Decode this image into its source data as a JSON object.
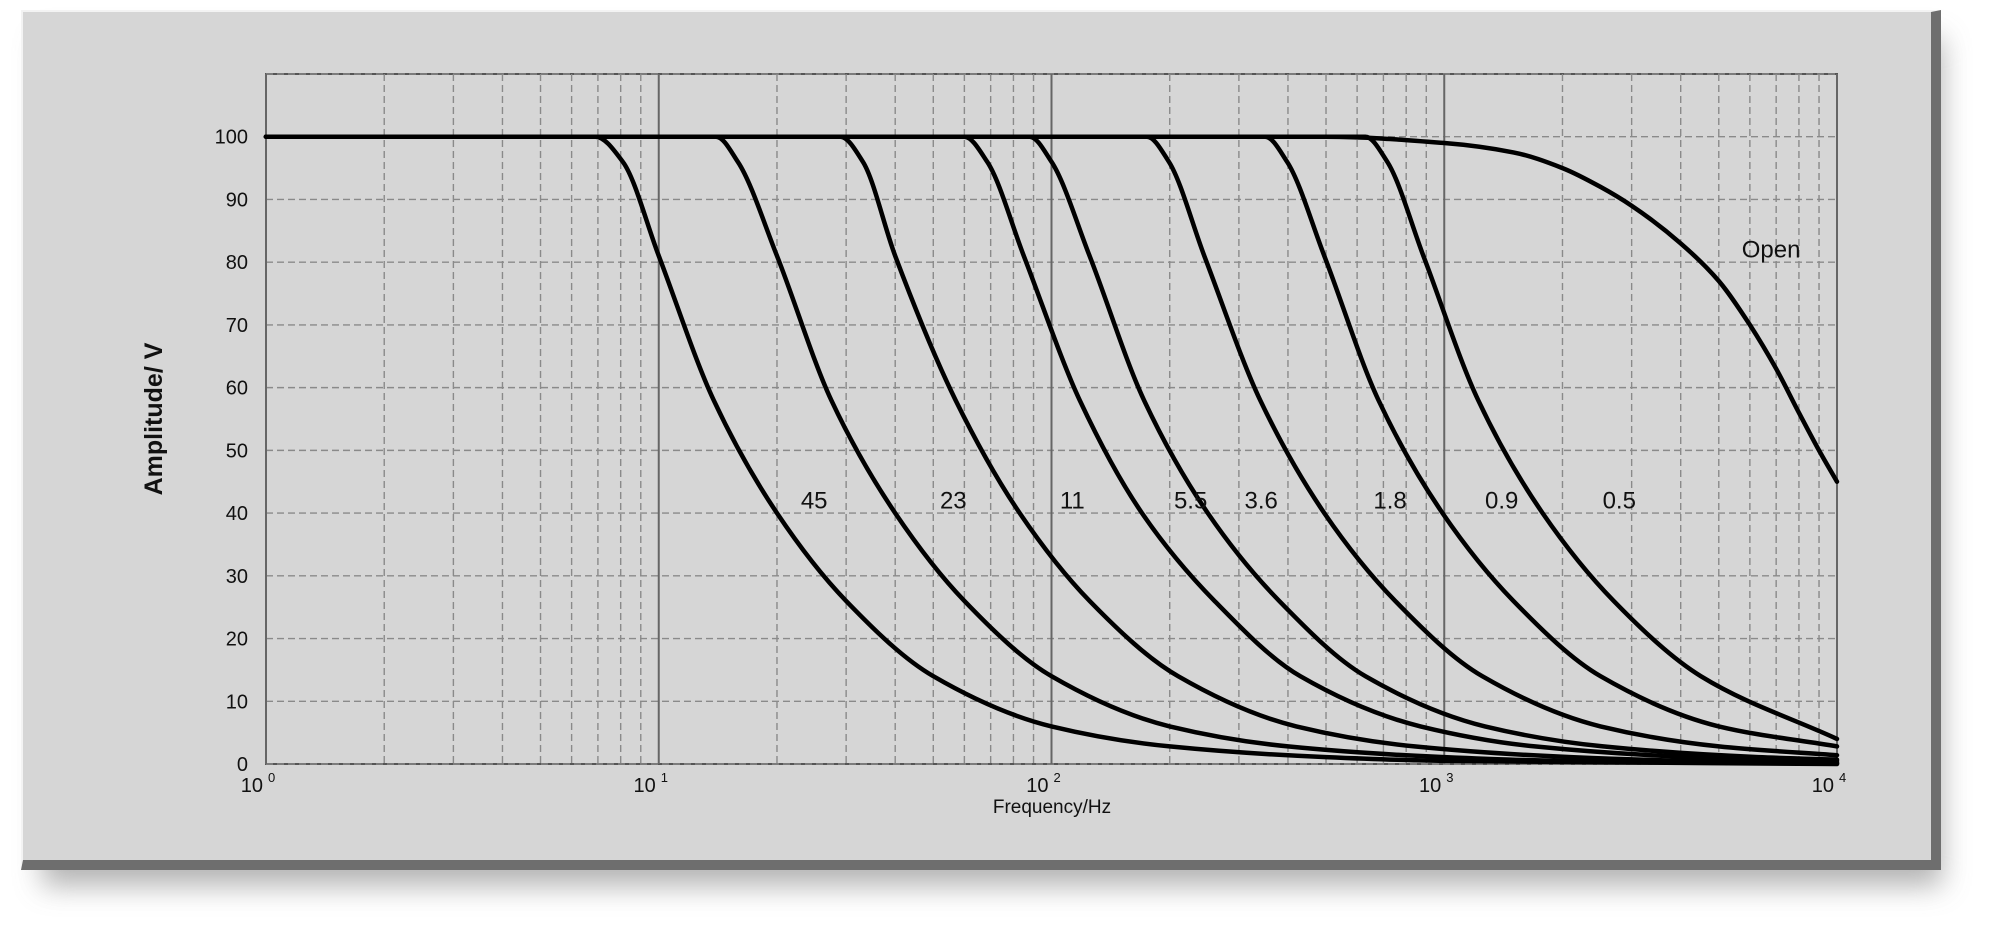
{
  "chart_data": {
    "type": "line",
    "xscale": "log",
    "xlim": [
      1,
      10000
    ],
    "ylim": [
      0,
      110
    ],
    "xlabel": "Frequency/Hz",
    "ylabel": "Amplitude/ V",
    "grid": true,
    "yticks": [
      0,
      10,
      20,
      30,
      40,
      50,
      60,
      70,
      80,
      90,
      100
    ],
    "xticks": [
      {
        "base": "10",
        "exp": "0",
        "value": 1
      },
      {
        "base": "10",
        "exp": "1",
        "value": 10
      },
      {
        "base": "10",
        "exp": "2",
        "value": 100
      },
      {
        "base": "10",
        "exp": "3",
        "value": 1000
      },
      {
        "base": "10",
        "exp": "4",
        "value": 10000
      }
    ],
    "series": [
      {
        "name": "45",
        "values": [
          [
            1,
            100
          ],
          [
            6.9,
            100
          ],
          [
            8.1,
            96
          ],
          [
            10,
            81
          ],
          [
            13.8,
            58
          ],
          [
            20,
            40
          ],
          [
            30,
            26
          ],
          [
            50,
            14
          ],
          [
            100,
            6
          ],
          [
            200,
            2.8
          ],
          [
            500,
            1.1
          ],
          [
            1000,
            0.5
          ],
          [
            10000,
            0
          ]
        ]
      },
      {
        "name": "23",
        "values": [
          [
            1,
            100
          ],
          [
            14,
            100
          ],
          [
            15.9,
            96
          ],
          [
            20,
            81
          ],
          [
            27.5,
            58
          ],
          [
            40,
            40
          ],
          [
            60,
            26
          ],
          [
            100,
            14
          ],
          [
            200,
            6
          ],
          [
            400,
            2.8
          ],
          [
            1000,
            1.1
          ],
          [
            2000,
            0.5
          ],
          [
            10000,
            0.1
          ]
        ]
      },
      {
        "name": "11",
        "values": [
          [
            1,
            100
          ],
          [
            29,
            100
          ],
          [
            33.1,
            96
          ],
          [
            40,
            81
          ],
          [
            57,
            58
          ],
          [
            83,
            40
          ],
          [
            125,
            26
          ],
          [
            210,
            14
          ],
          [
            420,
            6
          ],
          [
            840,
            2.8
          ],
          [
            2100,
            1.1
          ],
          [
            4200,
            0.5
          ],
          [
            10000,
            0.2
          ]
        ]
      },
      {
        "name": "5.5",
        "values": [
          [
            1,
            100
          ],
          [
            60,
            100
          ],
          [
            68.6,
            96
          ],
          [
            85,
            81
          ],
          [
            118,
            58
          ],
          [
            170,
            40
          ],
          [
            260,
            26
          ],
          [
            430,
            14
          ],
          [
            870,
            6
          ],
          [
            1700,
            2.8
          ],
          [
            4300,
            1.1
          ],
          [
            10000,
            0.5
          ]
        ]
      },
      {
        "name": "3.6",
        "values": [
          [
            1,
            100
          ],
          [
            88,
            100
          ],
          [
            100,
            96
          ],
          [
            125,
            81
          ],
          [
            172,
            58
          ],
          [
            250,
            40
          ],
          [
            380,
            26
          ],
          [
            630,
            14
          ],
          [
            1270,
            6
          ],
          [
            2540,
            2.8
          ],
          [
            6300,
            1.1
          ],
          [
            10000,
            0.7
          ]
        ]
      },
      {
        "name": "1.8",
        "values": [
          [
            1,
            100
          ],
          [
            175,
            100
          ],
          [
            199,
            96
          ],
          [
            245,
            81
          ],
          [
            340,
            58
          ],
          [
            495,
            40
          ],
          [
            750,
            26
          ],
          [
            1250,
            14
          ],
          [
            2500,
            6
          ],
          [
            5000,
            2.8
          ],
          [
            10000,
            1.4
          ]
        ]
      },
      {
        "name": "0.9",
        "values": [
          [
            1,
            100
          ],
          [
            350,
            100
          ],
          [
            398,
            96
          ],
          [
            495,
            81
          ],
          [
            680,
            58
          ],
          [
            990,
            40
          ],
          [
            1500,
            26
          ],
          [
            2500,
            14
          ],
          [
            5000,
            6
          ],
          [
            10000,
            2.8
          ]
        ]
      },
      {
        "name": "0.5",
        "values": [
          [
            1,
            100
          ],
          [
            630,
            100
          ],
          [
            716,
            96
          ],
          [
            885,
            81
          ],
          [
            1220,
            58
          ],
          [
            1780,
            40
          ],
          [
            2700,
            26
          ],
          [
            4500,
            14
          ],
          [
            10000,
            4
          ]
        ]
      },
      {
        "name": "Open",
        "values": [
          [
            1,
            100
          ],
          [
            500,
            100
          ],
          [
            1000,
            99
          ],
          [
            1500,
            97.5
          ],
          [
            2000,
            95
          ],
          [
            2500,
            92
          ],
          [
            3000,
            89
          ],
          [
            4000,
            83
          ],
          [
            5000,
            77
          ],
          [
            6000,
            70
          ],
          [
            7000,
            63
          ],
          [
            8000,
            56
          ],
          [
            9000,
            50
          ],
          [
            10000,
            45
          ]
        ]
      }
    ],
    "labels": [
      {
        "text": "45",
        "x": 23,
        "y": 42
      },
      {
        "text": "23",
        "x": 52,
        "y": 42
      },
      {
        "text": "11",
        "x": 105,
        "y": 42
      },
      {
        "text": "5.5",
        "x": 205,
        "y": 42
      },
      {
        "text": "3.6",
        "x": 310,
        "y": 42
      },
      {
        "text": "1.8",
        "x": 660,
        "y": 42
      },
      {
        "text": "0.9",
        "x": 1270,
        "y": 42
      },
      {
        "text": "0.5",
        "x": 2530,
        "y": 42
      },
      {
        "text": "Open",
        "x": 5720,
        "y": 82
      }
    ]
  }
}
